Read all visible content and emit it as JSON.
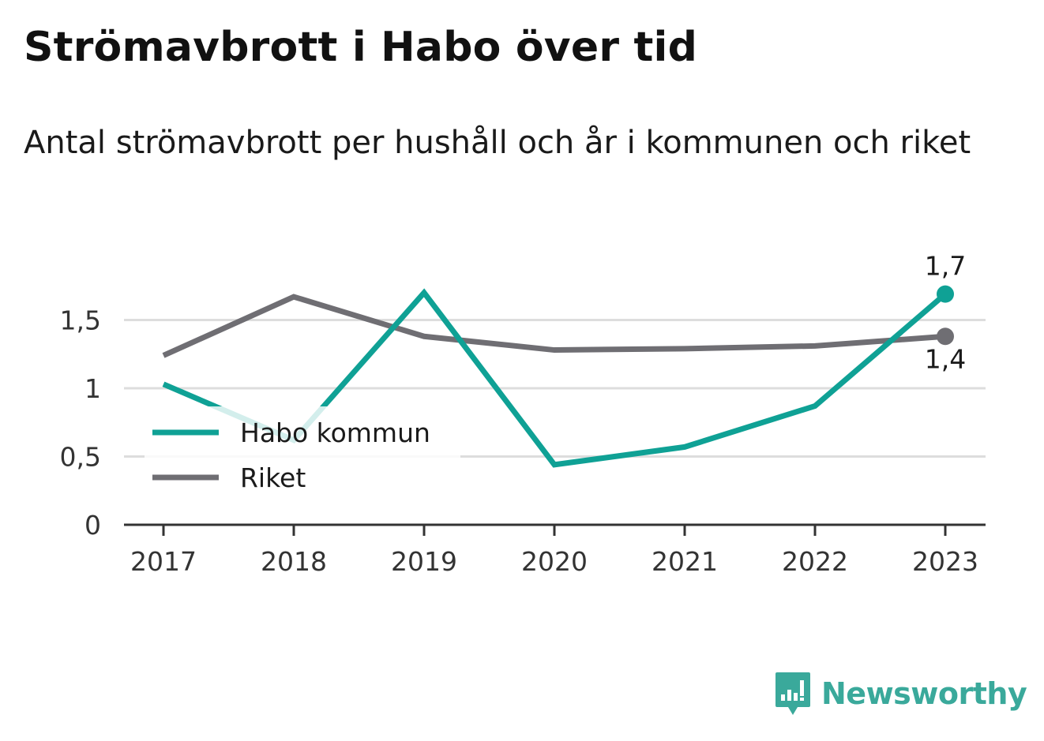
{
  "header": {
    "title": "Strömavbrott i Habo över tid",
    "subtitle": "Antal strömavbrott per hushåll och år i kommunen och riket"
  },
  "brand": {
    "name": "Newsworthy",
    "color": "#3aa99b",
    "icon": "newsworthy-logo-icon"
  },
  "chart_data": {
    "type": "line",
    "title": "Strömavbrott i Habo över tid",
    "subtitle": "Antal strömavbrott per hushåll och år i kommunen och riket",
    "xlabel": "",
    "ylabel": "",
    "categories": [
      "2017",
      "2018",
      "2019",
      "2020",
      "2021",
      "2022",
      "2023"
    ],
    "ylim": [
      0,
      1.88
    ],
    "yticks": [
      0,
      0.5,
      1,
      1.5
    ],
    "ytick_labels": [
      "0",
      "0,5",
      "1",
      "1,5"
    ],
    "grid": true,
    "legend_position": "lower-left",
    "series": [
      {
        "name": "Habo kommun",
        "color": "#0fa195",
        "values": [
          1.03,
          0.62,
          1.7,
          0.44,
          0.57,
          0.87,
          1.69
        ]
      },
      {
        "name": "Riket",
        "color": "#6f6e73",
        "values": [
          1.24,
          1.67,
          1.38,
          1.28,
          1.29,
          1.31,
          1.38
        ]
      }
    ],
    "end_labels": [
      {
        "series": "Habo kommun",
        "text": "1,7",
        "position": "above"
      },
      {
        "series": "Riket",
        "text": "1,4",
        "position": "below"
      }
    ]
  }
}
